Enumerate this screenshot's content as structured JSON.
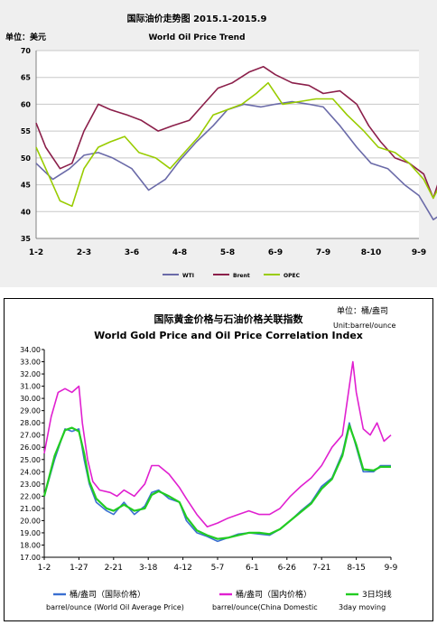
{
  "chart_data": [
    {
      "type": "line",
      "title": "国际油价走势图 2015.1-2015.9",
      "subtitle": "World Oil Price Trend",
      "unit_label": "单位：美元",
      "categories": [
        "1-2",
        "2-3",
        "3-6",
        "4-8",
        "5-8",
        "6-9",
        "7-9",
        "8-10",
        "9-9"
      ],
      "ylim": [
        35,
        70
      ],
      "yticks": [
        35,
        40,
        45,
        50,
        55,
        60,
        65,
        70
      ],
      "grid": true,
      "legend_position": "bottom",
      "series": [
        {
          "name": "WTI",
          "color": "#6a6aa8",
          "values": [
            [
              0,
              49
            ],
            [
              0.35,
              46
            ],
            [
              0.7,
              48
            ],
            [
              1.0,
              50.5
            ],
            [
              1.3,
              51
            ],
            [
              1.6,
              50
            ],
            [
              2.0,
              48
            ],
            [
              2.35,
              44
            ],
            [
              2.7,
              46
            ],
            [
              3.0,
              49.5
            ],
            [
              3.35,
              53
            ],
            [
              3.7,
              56
            ],
            [
              4.0,
              59
            ],
            [
              4.35,
              60
            ],
            [
              4.7,
              59.5
            ],
            [
              5.0,
              60
            ],
            [
              5.35,
              60.5
            ],
            [
              5.7,
              60
            ],
            [
              6.0,
              59.5
            ],
            [
              6.35,
              56
            ],
            [
              6.7,
              52
            ],
            [
              7.0,
              49
            ],
            [
              7.35,
              48
            ],
            [
              7.7,
              45
            ],
            [
              8.0,
              43
            ],
            [
              8.3,
              38.5
            ],
            [
              8.55,
              40
            ],
            [
              8.75,
              46
            ],
            [
              8.9,
              45
            ],
            [
              9.0,
              45.5
            ]
          ]
        },
        {
          "name": "Brent",
          "color": "#8b1f4a",
          "values": [
            [
              0,
              56.5
            ],
            [
              0.2,
              52
            ],
            [
              0.5,
              48
            ],
            [
              0.75,
              49
            ],
            [
              1.0,
              55
            ],
            [
              1.3,
              60
            ],
            [
              1.55,
              59
            ],
            [
              1.9,
              58
            ],
            [
              2.2,
              57
            ],
            [
              2.55,
              55
            ],
            [
              2.85,
              56
            ],
            [
              3.2,
              57
            ],
            [
              3.5,
              60
            ],
            [
              3.8,
              63
            ],
            [
              4.1,
              64
            ],
            [
              4.45,
              66
            ],
            [
              4.75,
              67
            ],
            [
              5.0,
              65.5
            ],
            [
              5.35,
              64
            ],
            [
              5.7,
              63.5
            ],
            [
              6.0,
              62
            ],
            [
              6.35,
              62.5
            ],
            [
              6.7,
              60
            ],
            [
              6.95,
              56
            ],
            [
              7.2,
              53
            ],
            [
              7.5,
              50
            ],
            [
              7.8,
              49
            ],
            [
              8.1,
              47
            ],
            [
              8.3,
              42.5
            ],
            [
              8.5,
              48
            ],
            [
              8.6,
              54
            ],
            [
              8.75,
              50
            ],
            [
              9.0,
              48.5
            ]
          ]
        },
        {
          "name": "OPEC",
          "color": "#99cc00",
          "values": [
            [
              0,
              52
            ],
            [
              0.25,
              47
            ],
            [
              0.5,
              42
            ],
            [
              0.75,
              41
            ],
            [
              1.0,
              48
            ],
            [
              1.3,
              52
            ],
            [
              1.55,
              53
            ],
            [
              1.85,
              54
            ],
            [
              2.15,
              51
            ],
            [
              2.5,
              50
            ],
            [
              2.8,
              48
            ],
            [
              3.1,
              51
            ],
            [
              3.4,
              54
            ],
            [
              3.7,
              58
            ],
            [
              4.0,
              59
            ],
            [
              4.3,
              60
            ],
            [
              4.6,
              62
            ],
            [
              4.85,
              64
            ],
            [
              5.15,
              60
            ],
            [
              5.5,
              60.5
            ],
            [
              5.85,
              61
            ],
            [
              6.2,
              61
            ],
            [
              6.5,
              58
            ],
            [
              6.85,
              55
            ],
            [
              7.15,
              52
            ],
            [
              7.5,
              51
            ],
            [
              7.8,
              49
            ],
            [
              8.1,
              46
            ],
            [
              8.3,
              42.5
            ],
            [
              8.5,
              46
            ],
            [
              8.65,
              49
            ],
            [
              8.85,
              46
            ],
            [
              9.0,
              45.5
            ]
          ]
        }
      ]
    },
    {
      "type": "line",
      "title": "国际黄金价格与石油价格关联指数",
      "subtitle": "World Gold Price and Oil Price Correlation Index",
      "unit_cn": "单位：桶/盎司",
      "unit_en": "Unit:barrel/ounce",
      "categories": [
        "1-2",
        "1-27",
        "2-21",
        "3-18",
        "4-12",
        "5-7",
        "6-1",
        "6-26",
        "7-21",
        "8-15",
        "9-9"
      ],
      "ylim": [
        17,
        34
      ],
      "yticks": [
        17,
        18,
        19,
        20,
        21,
        22,
        23,
        24,
        25,
        26,
        27,
        28,
        29,
        30,
        31,
        32,
        33,
        34
      ],
      "grid": false,
      "legend_position": "bottom",
      "series": [
        {
          "name": "桶/盎司（国际价格）",
          "name_en": "barrel/ounce (World Oil Average Price)",
          "color": "#3a6fd1",
          "values": [
            [
              0,
              22.0
            ],
            [
              0.3,
              25.0
            ],
            [
              0.6,
              27.5
            ],
            [
              0.8,
              27.3
            ],
            [
              1.0,
              27.5
            ],
            [
              1.15,
              25.0
            ],
            [
              1.3,
              23.0
            ],
            [
              1.5,
              21.5
            ],
            [
              1.8,
              20.8
            ],
            [
              2.0,
              20.5
            ],
            [
              2.3,
              21.5
            ],
            [
              2.6,
              20.5
            ],
            [
              2.9,
              21.2
            ],
            [
              3.1,
              22.3
            ],
            [
              3.3,
              22.5
            ],
            [
              3.6,
              21.8
            ],
            [
              3.9,
              21.5
            ],
            [
              4.1,
              20.0
            ],
            [
              4.4,
              19.0
            ],
            [
              4.7,
              18.7
            ],
            [
              5.0,
              18.3
            ],
            [
              5.3,
              18.6
            ],
            [
              5.6,
              18.9
            ],
            [
              5.9,
              19.0
            ],
            [
              6.2,
              18.9
            ],
            [
              6.5,
              18.8
            ],
            [
              6.8,
              19.3
            ],
            [
              7.1,
              20.0
            ],
            [
              7.4,
              20.8
            ],
            [
              7.7,
              21.5
            ],
            [
              8.0,
              22.8
            ],
            [
              8.3,
              23.5
            ],
            [
              8.6,
              25.5
            ],
            [
              8.8,
              28.0
            ],
            [
              9.0,
              26.0
            ],
            [
              9.2,
              24.0
            ],
            [
              9.5,
              24.0
            ],
            [
              9.7,
              24.5
            ],
            [
              10.0,
              24.5
            ]
          ]
        },
        {
          "name": "桶/盎司（国内价格）",
          "name_en": "barrel/ounce(China Domestic",
          "color": "#e020d0",
          "values": [
            [
              0,
              25.5
            ],
            [
              0.2,
              28.5
            ],
            [
              0.4,
              30.5
            ],
            [
              0.6,
              30.8
            ],
            [
              0.8,
              30.5
            ],
            [
              1.0,
              31.0
            ],
            [
              1.1,
              28.0
            ],
            [
              1.25,
              25.0
            ],
            [
              1.4,
              23.2
            ],
            [
              1.6,
              22.5
            ],
            [
              1.9,
              22.3
            ],
            [
              2.1,
              22.0
            ],
            [
              2.3,
              22.5
            ],
            [
              2.6,
              22.0
            ],
            [
              2.9,
              23.0
            ],
            [
              3.1,
              24.5
            ],
            [
              3.3,
              24.5
            ],
            [
              3.6,
              23.8
            ],
            [
              3.9,
              22.7
            ],
            [
              4.1,
              21.8
            ],
            [
              4.4,
              20.5
            ],
            [
              4.7,
              19.5
            ],
            [
              5.0,
              19.8
            ],
            [
              5.3,
              20.2
            ],
            [
              5.6,
              20.5
            ],
            [
              5.9,
              20.8
            ],
            [
              6.2,
              20.5
            ],
            [
              6.5,
              20.5
            ],
            [
              6.8,
              21.0
            ],
            [
              7.1,
              22.0
            ],
            [
              7.4,
              22.8
            ],
            [
              7.7,
              23.5
            ],
            [
              8.0,
              24.5
            ],
            [
              8.3,
              26.0
            ],
            [
              8.6,
              27.0
            ],
            [
              8.8,
              31.0
            ],
            [
              8.9,
              33.0
            ],
            [
              9.0,
              30.5
            ],
            [
              9.2,
              27.5
            ],
            [
              9.4,
              27.0
            ],
            [
              9.6,
              28.0
            ],
            [
              9.8,
              26.5
            ],
            [
              10.0,
              27.0
            ]
          ]
        },
        {
          "name": "3日均线",
          "name_en": "3day moving",
          "color": "#22cc22",
          "values": [
            [
              0,
              22.0
            ],
            [
              0.3,
              25.3
            ],
            [
              0.6,
              27.4
            ],
            [
              0.8,
              27.6
            ],
            [
              1.0,
              27.3
            ],
            [
              1.15,
              25.5
            ],
            [
              1.3,
              23.2
            ],
            [
              1.5,
              21.8
            ],
            [
              1.8,
              21.0
            ],
            [
              2.0,
              20.8
            ],
            [
              2.3,
              21.3
            ],
            [
              2.6,
              20.8
            ],
            [
              2.9,
              21.0
            ],
            [
              3.1,
              22.1
            ],
            [
              3.3,
              22.4
            ],
            [
              3.6,
              22.0
            ],
            [
              3.9,
              21.5
            ],
            [
              4.1,
              20.3
            ],
            [
              4.4,
              19.2
            ],
            [
              4.7,
              18.8
            ],
            [
              5.0,
              18.5
            ],
            [
              5.3,
              18.6
            ],
            [
              5.6,
              18.8
            ],
            [
              5.9,
              19.0
            ],
            [
              6.2,
              19.0
            ],
            [
              6.5,
              18.9
            ],
            [
              6.8,
              19.3
            ],
            [
              7.1,
              20.0
            ],
            [
              7.4,
              20.7
            ],
            [
              7.7,
              21.4
            ],
            [
              8.0,
              22.6
            ],
            [
              8.3,
              23.4
            ],
            [
              8.6,
              25.3
            ],
            [
              8.8,
              27.8
            ],
            [
              9.0,
              26.2
            ],
            [
              9.2,
              24.2
            ],
            [
              9.5,
              24.1
            ],
            [
              9.7,
              24.4
            ],
            [
              10.0,
              24.4
            ]
          ]
        }
      ]
    }
  ]
}
